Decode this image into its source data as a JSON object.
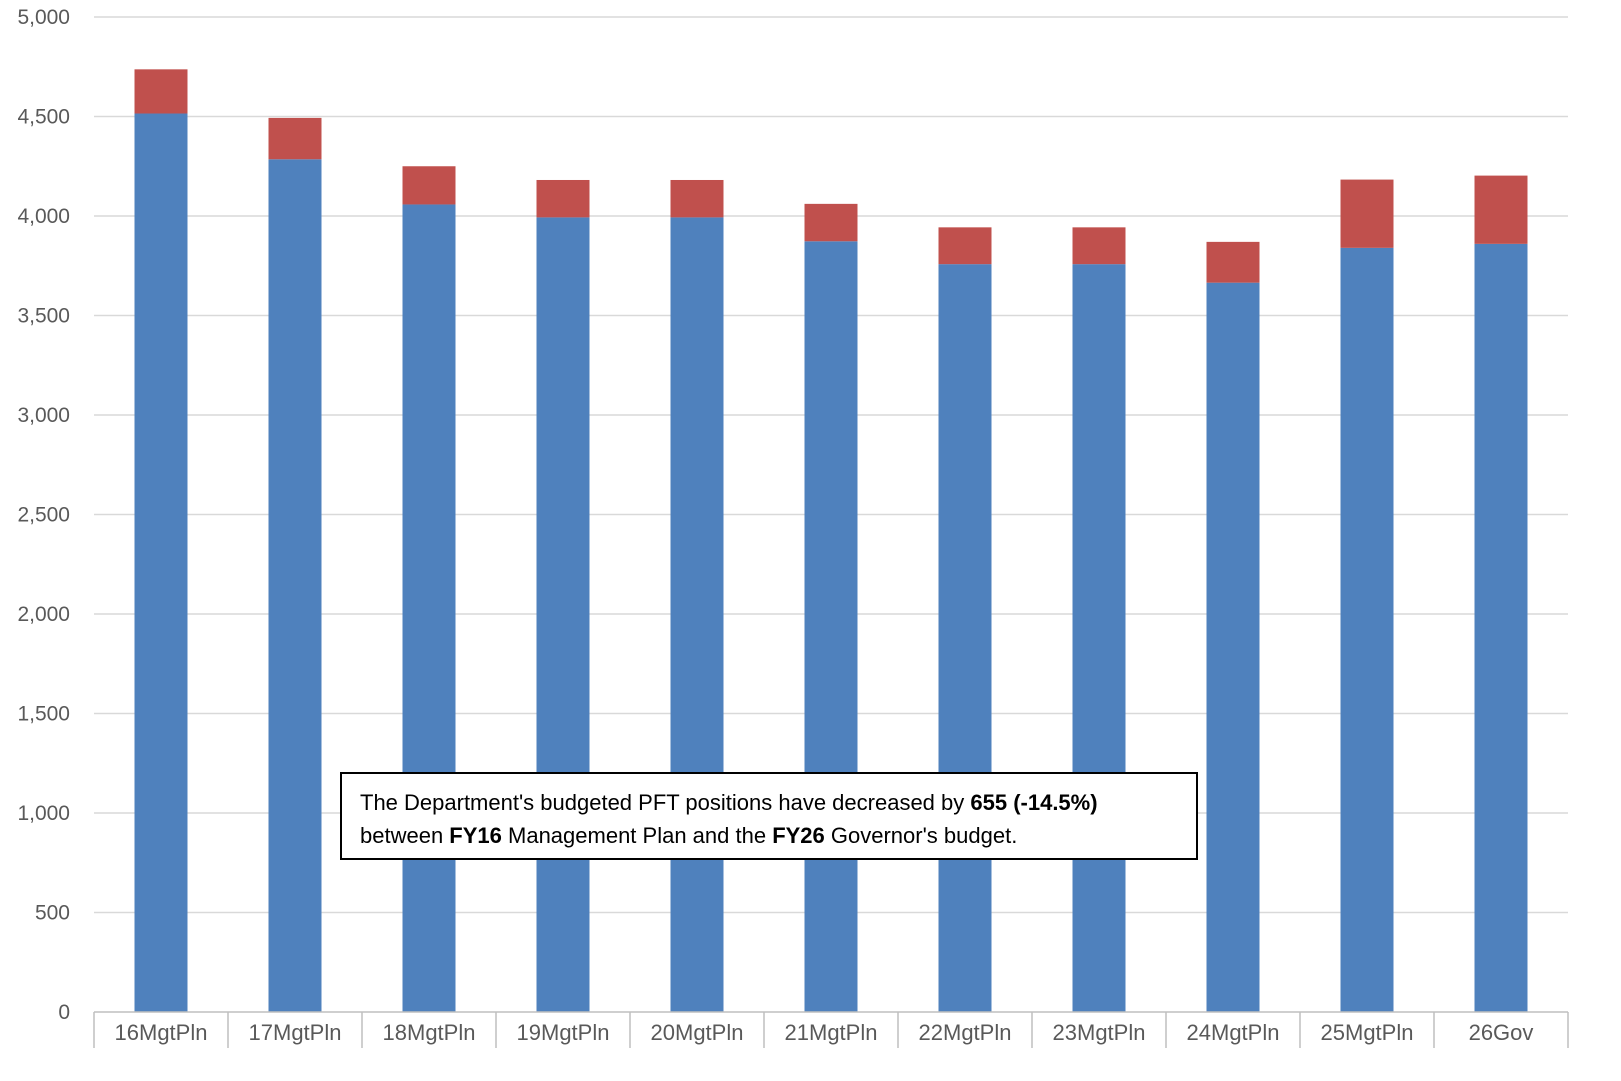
{
  "chart_data": {
    "type": "bar",
    "stacked": true,
    "categories": [
      "16MgtPln",
      "17MgtPln",
      "18MgtPln",
      "19MgtPln",
      "20MgtPln",
      "21MgtPln",
      "22MgtPln",
      "23MgtPln",
      "24MgtPln",
      "25MgtPln",
      "26Gov"
    ],
    "series": [
      {
        "values": [
          4515,
          4285,
          4058,
          3993,
          3993,
          3873,
          3758,
          3758,
          3665,
          3840,
          3860
        ],
        "color": "#4F81BD"
      },
      {
        "values": [
          222,
          208,
          192,
          188,
          188,
          188,
          185,
          185,
          205,
          343,
          343
        ],
        "color": "#C0504D"
      }
    ],
    "ylim": [
      0,
      5000
    ],
    "yticks": [
      "0",
      "500",
      "1,000",
      "1,500",
      "2,000",
      "2,500",
      "3,000",
      "3,500",
      "4,000",
      "4,500",
      "5,000"
    ],
    "ytick_values": [
      0,
      500,
      1000,
      1500,
      2000,
      2500,
      3000,
      3500,
      4000,
      4500,
      5000
    ],
    "grid": true,
    "xlabel": "",
    "ylabel": "",
    "title": ""
  },
  "annotation": {
    "line1_pre": "The Department's budgeted PFT positions have decreased by ",
    "line1_bold": "655 (-14.5%)",
    "line2_pre": "between ",
    "line2_bold1": "FY16",
    "line2_mid": " Management Plan and the ",
    "line2_bold2": "FY26",
    "line2_post": " Governor's budget."
  },
  "colors": {
    "grid": "#D9D9D9",
    "axis": "#BFBFBF",
    "text": "#595959"
  }
}
